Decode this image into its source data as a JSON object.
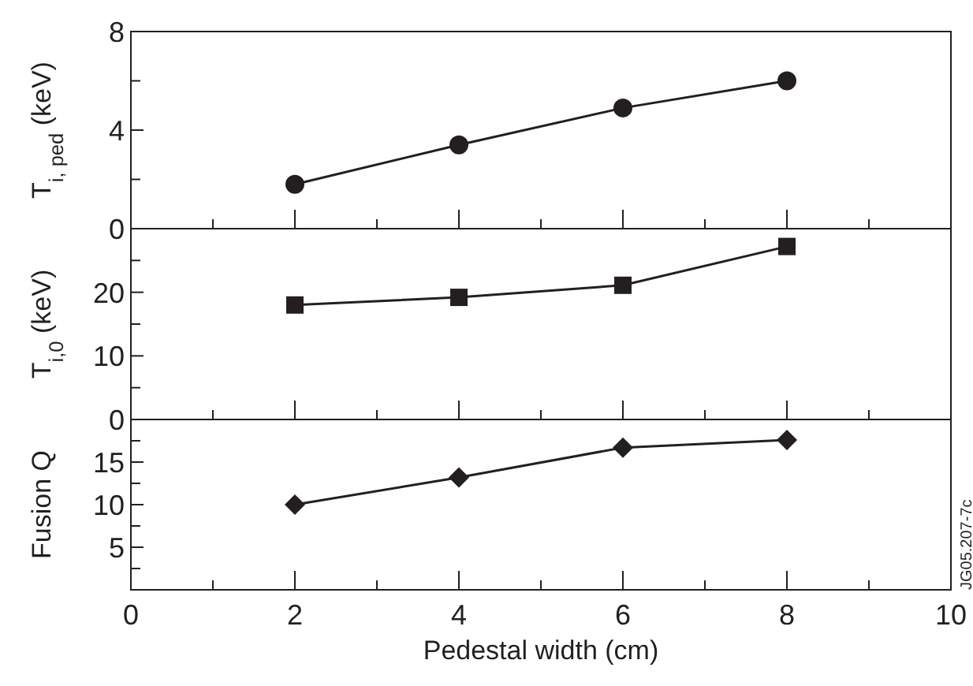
{
  "chart_data": [
    {
      "type": "line",
      "ylabel": "T$_{i, ped}$ (keV)",
      "x": [
        2,
        4,
        6,
        8
      ],
      "series": [
        {
          "color": "#231f20",
          "values": [
            1.8,
            3.4,
            4.9,
            6.0
          ]
        }
      ],
      "marker": "circle",
      "xlim": [
        0,
        10
      ],
      "xticks": [
        0,
        {
          "value": 1,
          "label": null
        },
        2,
        {
          "value": 3,
          "label": null
        },
        4,
        {
          "value": 5,
          "label": null
        },
        6,
        {
          "value": 7,
          "label": null
        },
        8,
        {
          "value": 9,
          "label": null
        },
        10
      ],
      "ylim": [
        0,
        8
      ],
      "yticks": [
        0,
        {
          "value": 2,
          "label": null
        },
        4,
        {
          "value": 6,
          "label": null
        },
        8
      ],
      "tick_labels": "y"
    },
    {
      "type": "line",
      "ylabel": "T$_{i,0}$ (keV)",
      "x": [
        2,
        4,
        6,
        8
      ],
      "series": [
        {
          "color": "#231f20",
          "values": [
            18,
            19.2,
            21.1,
            27.2
          ]
        }
      ],
      "marker": "square",
      "xlim": [
        0,
        10
      ],
      "xticks": [
        0,
        {
          "value": 1,
          "label": null
        },
        2,
        {
          "value": 3,
          "label": null
        },
        4,
        {
          "value": 5,
          "label": null
        },
        6,
        {
          "value": 7,
          "label": null
        },
        8,
        {
          "value": 9,
          "label": null
        },
        10
      ],
      "ylim": [
        0,
        30
      ],
      "yticks": [
        0,
        {
          "value": 5,
          "label": null
        },
        10,
        {
          "value": 15,
          "label": null
        },
        20,
        {
          "value": 25,
          "label": null
        },
        {
          "value": 30,
          "label": null
        }
      ],
      "tick_labels": "y"
    },
    {
      "type": "line",
      "ylabel": "Fusion Q",
      "xlabel": "Pedestal width (cm)",
      "x": [
        2,
        4,
        6,
        8
      ],
      "series": [
        {
          "color": "#231f20",
          "values": [
            10,
            13.2,
            16.7,
            17.6
          ]
        }
      ],
      "marker": "diamond",
      "xlim": [
        0,
        10
      ],
      "xticks": [
        0,
        {
          "value": 1,
          "label": null
        },
        2,
        {
          "value": 3,
          "label": null
        },
        4,
        {
          "value": 5,
          "label": null
        },
        6,
        {
          "value": 7,
          "label": null
        },
        8,
        {
          "value": 9,
          "label": null
        },
        10
      ],
      "ylim": [
        0,
        20
      ],
      "yticks": [
        {
          "value": 0,
          "label": null
        },
        {
          "value": 2.5,
          "label": null
        },
        5,
        {
          "value": 7.5,
          "label": null
        },
        10,
        {
          "value": 12.5,
          "label": null
        },
        15,
        {
          "value": 17.5,
          "label": null
        },
        {
          "value": 20,
          "label": null
        }
      ],
      "annotations": [
        "JG05.207-7c"
      ]
    }
  ]
}
